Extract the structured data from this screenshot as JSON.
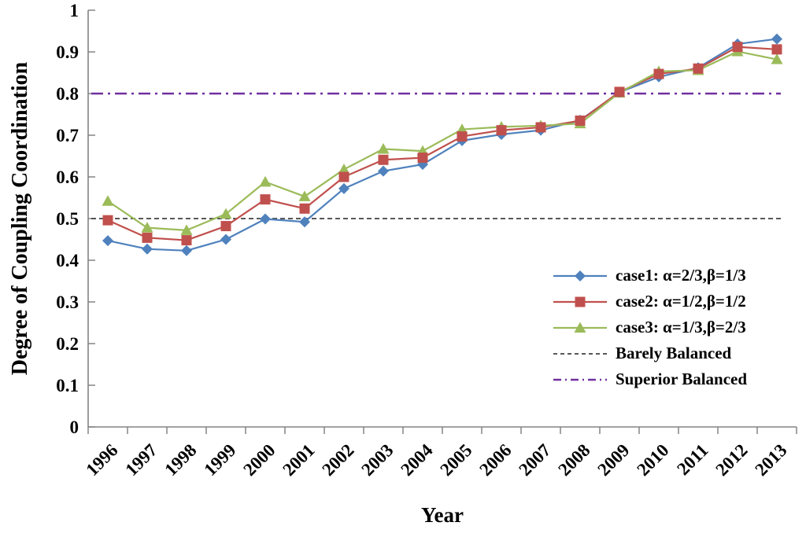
{
  "chart_data": {
    "type": "line",
    "title": "",
    "xlabel": "Year",
    "ylabel": "Degree of Coupling Coordination",
    "x_categories": [
      "1996",
      "1997",
      "1998",
      "1999",
      "2000",
      "2001",
      "2002",
      "2003",
      "2004",
      "2005",
      "2006",
      "2007",
      "2008",
      "2009",
      "2010",
      "2011",
      "2012",
      "2013"
    ],
    "y_ticks": [
      "1",
      "0.9",
      "0.8",
      "0.7",
      "0.6",
      "0.5",
      "0.4",
      "0.3",
      "0.2",
      "0.1",
      "0"
    ],
    "ylim": [
      0,
      1
    ],
    "grid": false,
    "legend_position": "inside-right",
    "series": [
      {
        "name": "case1: α=2/3,β=1/3",
        "marker": "diamond",
        "color": "#4F81BD",
        "values": [
          0.447,
          0.427,
          0.423,
          0.45,
          0.499,
          0.492,
          0.572,
          0.614,
          0.63,
          0.687,
          0.702,
          0.712,
          0.736,
          0.803,
          0.84,
          0.862,
          0.919,
          0.931
        ]
      },
      {
        "name": "case2: α=1/2,β=1/2",
        "marker": "square",
        "color": "#C0504D",
        "values": [
          0.496,
          0.454,
          0.448,
          0.482,
          0.546,
          0.524,
          0.6,
          0.641,
          0.646,
          0.697,
          0.712,
          0.719,
          0.735,
          0.804,
          0.847,
          0.86,
          0.912,
          0.906
        ]
      },
      {
        "name": "case3: α=1/3,β=2/3",
        "marker": "triangle",
        "color": "#9BBB59",
        "values": [
          0.542,
          0.478,
          0.472,
          0.511,
          0.588,
          0.553,
          0.618,
          0.667,
          0.662,
          0.714,
          0.72,
          0.723,
          0.728,
          0.802,
          0.853,
          0.856,
          0.901,
          0.882
        ]
      }
    ],
    "reference_lines": [
      {
        "name": "Barely Balanced",
        "value": 0.5,
        "style": "dashed",
        "color": "#404040"
      },
      {
        "name": "Superior Balanced",
        "value": 0.8,
        "style": "dash-dot",
        "color": "#7030A0"
      }
    ],
    "axis_color": "#848484"
  }
}
